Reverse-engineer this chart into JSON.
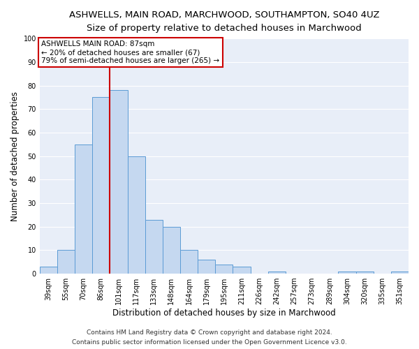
{
  "title": "ASHWELLS, MAIN ROAD, MARCHWOOD, SOUTHAMPTON, SO40 4UZ",
  "subtitle": "Size of property relative to detached houses in Marchwood",
  "xlabel": "Distribution of detached houses by size in Marchwood",
  "ylabel": "Number of detached properties",
  "categories": [
    "39sqm",
    "55sqm",
    "70sqm",
    "86sqm",
    "101sqm",
    "117sqm",
    "133sqm",
    "148sqm",
    "164sqm",
    "179sqm",
    "195sqm",
    "211sqm",
    "226sqm",
    "242sqm",
    "257sqm",
    "273sqm",
    "289sqm",
    "304sqm",
    "320sqm",
    "335sqm",
    "351sqm"
  ],
  "values": [
    3,
    10,
    55,
    75,
    78,
    50,
    23,
    20,
    10,
    6,
    4,
    3,
    0,
    1,
    0,
    0,
    0,
    1,
    1,
    0,
    1
  ],
  "bar_color": "#c5d8f0",
  "bar_edge_color": "#5b9bd5",
  "vline_x_index": 3,
  "vline_color": "#cc0000",
  "annotation_text": "ASHWELLS MAIN ROAD: 87sqm\n← 20% of detached houses are smaller (67)\n79% of semi-detached houses are larger (265) →",
  "annotation_box_color": "#ffffff",
  "annotation_box_edge_color": "#cc0000",
  "ylim": [
    0,
    100
  ],
  "yticks": [
    0,
    10,
    20,
    30,
    40,
    50,
    60,
    70,
    80,
    90,
    100
  ],
  "background_color": "#e8eef8",
  "footer_line1": "Contains HM Land Registry data © Crown copyright and database right 2024.",
  "footer_line2": "Contains public sector information licensed under the Open Government Licence v3.0.",
  "title_fontsize": 9.5,
  "subtitle_fontsize": 9,
  "annotation_fontsize": 7.5,
  "axis_label_fontsize": 8.5,
  "ylabel_fontsize": 8.5,
  "tick_fontsize": 7,
  "footer_fontsize": 6.5
}
